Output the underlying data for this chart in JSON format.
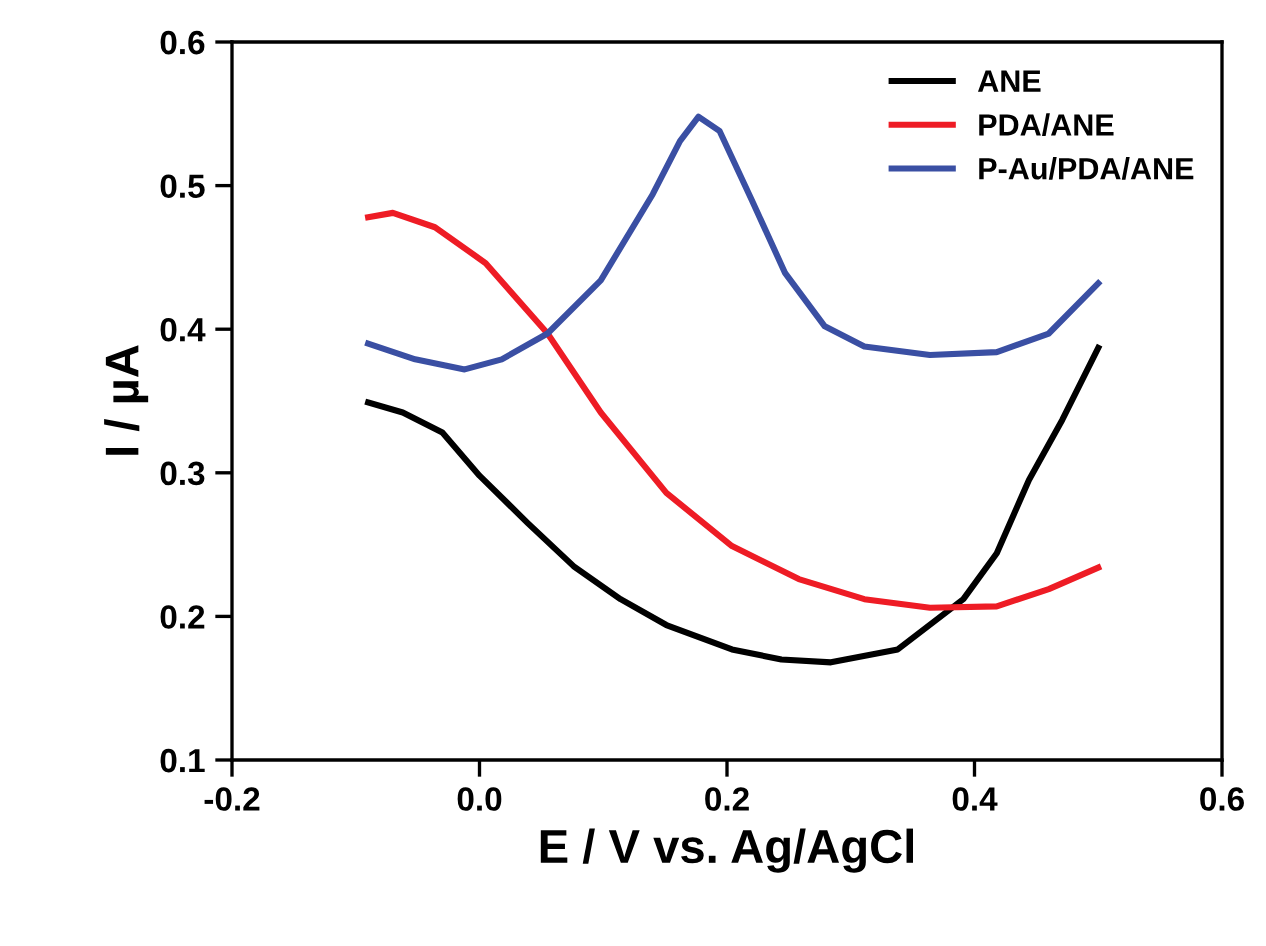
{
  "chart_data": {
    "type": "line",
    "xlabel": "E / V vs. Ag/AgCl",
    "ylabel": "I / µA",
    "xlim": [
      -0.2,
      0.6
    ],
    "ylim": [
      0.1,
      0.6
    ],
    "xticks": [
      {
        "value": -0.2,
        "label": "-0.2"
      },
      {
        "value": 0,
        "label": "0.0"
      },
      {
        "value": 0.2,
        "label": "0.2"
      },
      {
        "value": 0.4,
        "label": "0.4"
      },
      {
        "value": 0.6,
        "label": "0.6"
      }
    ],
    "yticks": [
      0.1,
      0.2,
      0.3,
      0.4,
      0.5,
      0.6
    ],
    "grid": false,
    "legend": "top right",
    "marker": "none",
    "line_style": "solid",
    "series": [
      {
        "name": "ANE",
        "color": "#000000",
        "x": [
          -0.09,
          -0.062,
          -0.03,
          0,
          0.039,
          0.076,
          0.114,
          0.151,
          0.204,
          0.244,
          0.284,
          0.338,
          0.391,
          0.418,
          0.444,
          0.471,
          0.5
        ],
        "values": [
          0.349,
          0.342,
          0.328,
          0.298,
          0.265,
          0.235,
          0.212,
          0.194,
          0.177,
          0.17,
          0.168,
          0.177,
          0.212,
          0.244,
          0.295,
          0.337,
          0.387
        ]
      },
      {
        "name": "PDA/ANE",
        "color": "#ee1c25",
        "x": [
          -0.09,
          -0.07,
          -0.036,
          0.005,
          0.055,
          0.098,
          0.151,
          0.204,
          0.258,
          0.311,
          0.364,
          0.418,
          0.46,
          0.5
        ],
        "values": [
          0.478,
          0.481,
          0.471,
          0.446,
          0.397,
          0.342,
          0.286,
          0.249,
          0.226,
          0.212,
          0.206,
          0.207,
          0.219,
          0.234
        ]
      },
      {
        "name": "P-Au/PDA/ANE",
        "color": "#3a4fa3",
        "x": [
          -0.09,
          -0.052,
          -0.012,
          0.018,
          0.055,
          0.098,
          0.14,
          0.162,
          0.177,
          0.194,
          0.22,
          0.247,
          0.279,
          0.311,
          0.364,
          0.418,
          0.46,
          0.5
        ],
        "values": [
          0.39,
          0.379,
          0.372,
          0.379,
          0.397,
          0.434,
          0.494,
          0.531,
          0.548,
          0.538,
          0.49,
          0.439,
          0.402,
          0.388,
          0.382,
          0.384,
          0.397,
          0.432
        ]
      }
    ]
  }
}
